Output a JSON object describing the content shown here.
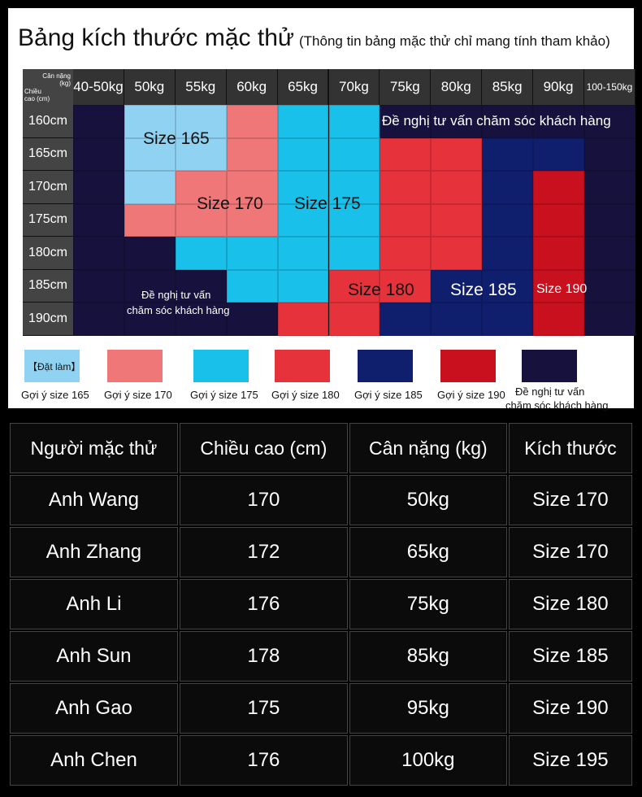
{
  "chart": {
    "title": "Bảng kích thước mặc thử",
    "subtitle": "(Thông tin bảng mặc thử chỉ mang tính tham khảo)",
    "corner_weight": "Cân nặng (kg)",
    "corner_height": "Chiều cao (cm)",
    "weights": [
      "40-50kg",
      "50kg",
      "55kg",
      "60kg",
      "65kg",
      "70kg",
      "75kg",
      "80kg",
      "85kg",
      "90kg",
      "100-150kg"
    ],
    "heights": [
      "160cm",
      "165cm",
      "170cm",
      "175cm",
      "180cm",
      "185cm",
      "190cm"
    ],
    "colors": {
      "165": "#8fd2f2",
      "170": "#ef7778",
      "175": "#18c0ea",
      "180": "#e5323b",
      "185": "#0f1f6e",
      "190": "#c8101e",
      "consult": "#17123d"
    },
    "cells": [
      [
        "consult",
        "165",
        "165",
        "170",
        "175",
        "175",
        "consult",
        "consult",
        "consult",
        "consult",
        "consult"
      ],
      [
        "consult",
        "165",
        "165",
        "170",
        "175",
        "175",
        "180",
        "180",
        "185",
        "185",
        "consult"
      ],
      [
        "consult",
        "165",
        "170",
        "170",
        "175",
        "175",
        "180",
        "180",
        "185",
        "190",
        "consult"
      ],
      [
        "consult",
        "170",
        "170",
        "170",
        "175",
        "175",
        "180",
        "180",
        "185",
        "190",
        "consult"
      ],
      [
        "consult",
        "consult",
        "175",
        "175",
        "175",
        "175",
        "180",
        "180",
        "185",
        "190",
        "consult"
      ],
      [
        "consult",
        "consult",
        "consult",
        "175",
        "175",
        "180",
        "180",
        "185",
        "185",
        "190",
        "consult"
      ],
      [
        "consult",
        "consult",
        "consult",
        "consult",
        "180",
        "180",
        "185",
        "185",
        "185",
        "190",
        "consult"
      ]
    ],
    "zone_labels": {
      "s165": "Size 165",
      "s170": "Size 170",
      "s175": "Size 175",
      "s180": "Size 180",
      "s185": "Size 185",
      "s190": "Size 190",
      "consult_top": "Đề nghị tư vấn chăm sóc khách hàng",
      "consult_mid_1": "Đề nghị tư vấn",
      "consult_mid_2": "chăm sóc khách hàng"
    }
  },
  "legend": [
    {
      "key": "165",
      "label": "Gợi ý size 165",
      "tag": "【Đặt làm】"
    },
    {
      "key": "170",
      "label": "Gợi ý size 170"
    },
    {
      "key": "175",
      "label": "Gợi ý size 175"
    },
    {
      "key": "180",
      "label": "Gợi ý size 180"
    },
    {
      "key": "185",
      "label": "Gợi ý size 185"
    },
    {
      "key": "190",
      "label": "Gợi ý size 190"
    },
    {
      "key": "consult",
      "label": "Đề nghị tư vấn chăm sóc khách hàng",
      "label1": "Đề nghị tư vấn",
      "label2": "chăm sóc khách hàng"
    }
  ],
  "table": {
    "headers": [
      "Người mặc thử",
      "Chiều cao (cm)",
      "Cân nặng (kg)",
      "Kích thước"
    ],
    "rows": [
      [
        "Anh Wang",
        "170",
        "50kg",
        "Size 170"
      ],
      [
        "Anh Zhang",
        "172",
        "65kg",
        "Size 170"
      ],
      [
        "Anh Li",
        "176",
        "75kg",
        "Size 180"
      ],
      [
        "Anh Sun",
        "178",
        "85kg",
        "Size 185"
      ],
      [
        "Anh Gao",
        "175",
        "95kg",
        "Size 190"
      ],
      [
        "Anh Chen",
        "176",
        "100kg",
        "Size 195"
      ]
    ]
  }
}
